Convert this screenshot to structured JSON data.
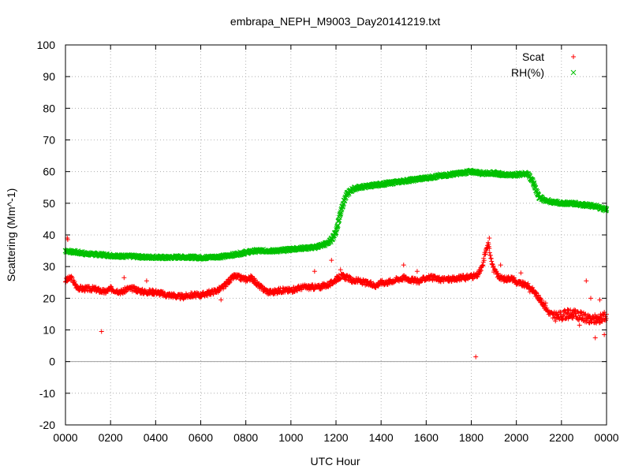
{
  "chart_data": {
    "type": "scatter",
    "title": "embrapa_NEPH_M9003_Day20141219.txt",
    "xlabel": "UTC Hour",
    "ylabel": "Scattering (Mm^-1)",
    "xlim": [
      0,
      24
    ],
    "ylim": [
      -20,
      100
    ],
    "grid": true,
    "legend_position": "top-right",
    "x_ticks": [
      "0000",
      "0200",
      "0400",
      "0600",
      "0800",
      "1000",
      "1200",
      "1400",
      "1600",
      "1800",
      "2000",
      "2200",
      "0000"
    ],
    "y_ticks": [
      "-20",
      "-10",
      "0",
      "10",
      "20",
      "30",
      "40",
      "50",
      "60",
      "70",
      "80",
      "90",
      "100"
    ],
    "zero_line": 0,
    "series": [
      {
        "name": "Scat",
        "marker": "+",
        "color": "#ff0000",
        "x": [
          0.0,
          0.25,
          0.5,
          0.75,
          1.0,
          1.25,
          1.5,
          1.75,
          2.0,
          2.25,
          2.5,
          2.75,
          3.0,
          3.25,
          3.5,
          3.75,
          4.0,
          4.25,
          4.5,
          4.75,
          5.0,
          5.25,
          5.5,
          5.75,
          6.0,
          6.25,
          6.5,
          6.75,
          7.0,
          7.25,
          7.5,
          7.75,
          8.0,
          8.25,
          8.5,
          8.75,
          9.0,
          9.25,
          9.5,
          9.75,
          10.0,
          10.25,
          10.5,
          10.75,
          11.0,
          11.25,
          11.5,
          11.75,
          12.0,
          12.25,
          12.5,
          12.75,
          13.0,
          13.25,
          13.5,
          13.75,
          14.0,
          14.25,
          14.5,
          14.75,
          15.0,
          15.25,
          15.5,
          15.75,
          16.0,
          16.25,
          16.5,
          16.75,
          17.0,
          17.25,
          17.5,
          17.75,
          18.0,
          18.25,
          18.5,
          18.6,
          18.75,
          19.0,
          19.25,
          19.5,
          19.75,
          20.0,
          20.25,
          20.5,
          20.75,
          21.0,
          21.25,
          21.5,
          21.75,
          22.0,
          22.25,
          22.5,
          22.75,
          23.0,
          23.25,
          23.5,
          23.75,
          24.0
        ],
        "y": [
          25.5,
          26.5,
          23.5,
          23.0,
          23.0,
          23.0,
          22.5,
          22.0,
          23.0,
          22.5,
          22.0,
          23.0,
          23.0,
          22.5,
          22.0,
          22.0,
          22.0,
          21.5,
          21.0,
          21.0,
          20.5,
          20.5,
          21.0,
          21.0,
          21.0,
          21.5,
          22.0,
          22.5,
          23.5,
          25.5,
          27.0,
          26.5,
          26.0,
          26.5,
          24.5,
          23.0,
          22.0,
          22.0,
          22.5,
          22.5,
          22.5,
          23.0,
          23.5,
          23.5,
          23.5,
          23.5,
          24.0,
          24.5,
          26.0,
          27.0,
          26.5,
          25.5,
          25.5,
          25.0,
          24.5,
          24.0,
          25.0,
          25.0,
          25.5,
          26.0,
          26.5,
          26.0,
          25.5,
          25.5,
          26.5,
          26.5,
          26.0,
          26.0,
          26.0,
          26.0,
          26.5,
          26.5,
          27.0,
          27.0,
          30.0,
          34.0,
          37.0,
          29.0,
          26.5,
          26.0,
          26.5,
          25.0,
          24.5,
          24.0,
          22.5,
          20.0,
          17.5,
          15.0,
          14.0,
          14.5,
          15.0,
          15.0,
          14.5,
          14.0,
          13.0,
          13.5,
          13.5,
          14.5
        ],
        "outliers_x": [
          0.08,
          0.1,
          1.6,
          2.6,
          3.6,
          6.9,
          7.4,
          11.05,
          11.8,
          12.2,
          15.0,
          15.6,
          18.2,
          18.65,
          18.8,
          19.3,
          19.9,
          20.2,
          20.6,
          21.3,
          22.3,
          22.8,
          23.1,
          23.3,
          23.5,
          23.7,
          23.9
        ],
        "outliers_y": [
          39.0,
          38.5,
          9.5,
          26.5,
          25.5,
          19.5,
          27.0,
          28.5,
          32.0,
          29.0,
          30.5,
          28.5,
          1.5,
          35.0,
          39.0,
          30.5,
          26.5,
          28.0,
          22.0,
          18.5,
          13.5,
          11.5,
          25.5,
          20.0,
          7.5,
          19.5,
          8.5
        ]
      },
      {
        "name": "RH(%)",
        "marker": "x",
        "color": "#00c000",
        "x": [
          0.0,
          0.5,
          1.0,
          1.5,
          2.0,
          2.5,
          3.0,
          3.5,
          4.0,
          4.5,
          5.0,
          5.5,
          6.0,
          6.5,
          7.0,
          7.5,
          8.0,
          8.5,
          9.0,
          9.5,
          10.0,
          10.5,
          11.0,
          11.5,
          11.75,
          12.0,
          12.1,
          12.25,
          12.4,
          12.5,
          12.75,
          13.0,
          13.5,
          14.0,
          14.5,
          15.0,
          15.5,
          16.0,
          16.5,
          17.0,
          17.5,
          18.0,
          18.5,
          19.0,
          19.5,
          20.0,
          20.5,
          20.75,
          21.0,
          21.25,
          21.5,
          22.0,
          22.5,
          23.0,
          23.5,
          23.75,
          24.0
        ],
        "y": [
          35.0,
          34.5,
          34.0,
          33.8,
          33.5,
          33.3,
          33.2,
          33.0,
          33.0,
          32.8,
          33.0,
          33.0,
          32.8,
          33.0,
          33.2,
          33.8,
          34.5,
          35.0,
          35.0,
          35.0,
          35.5,
          35.8,
          36.0,
          37.0,
          38.0,
          41.0,
          44.0,
          48.5,
          51.5,
          53.0,
          54.5,
          55.0,
          55.5,
          56.0,
          56.5,
          57.0,
          57.5,
          58.0,
          58.5,
          59.0,
          59.5,
          60.0,
          59.5,
          59.5,
          59.0,
          59.0,
          59.5,
          56.5,
          52.0,
          51.0,
          50.5,
          50.0,
          50.0,
          49.5,
          49.0,
          48.5,
          48.0
        ]
      }
    ]
  }
}
